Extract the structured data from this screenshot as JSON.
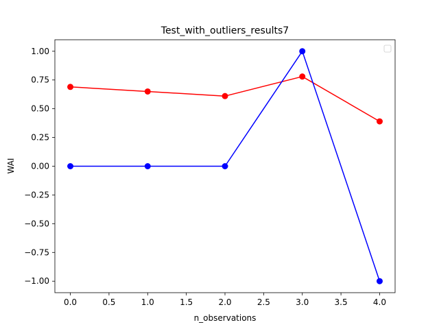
{
  "chart_data": {
    "type": "line",
    "title": "Test_with_outliers_results7",
    "xlabel": "n_observations",
    "ylabel": "WAI",
    "xlim": [
      -0.2,
      4.2
    ],
    "ylim": [
      -1.1,
      1.1
    ],
    "xticks": [
      0.0,
      0.5,
      1.0,
      1.5,
      2.0,
      2.5,
      3.0,
      3.5,
      4.0
    ],
    "xtick_labels": [
      "0.0",
      "0.5",
      "1.0",
      "1.5",
      "2.0",
      "2.5",
      "3.0",
      "3.5",
      "4.0"
    ],
    "yticks": [
      1.0,
      0.75,
      0.5,
      0.25,
      0.0,
      -0.25,
      -0.5,
      -0.75,
      -1.0
    ],
    "ytick_labels": [
      "1.00",
      "0.75",
      "0.50",
      "0.25",
      "0.00",
      "−0.25",
      "−0.50",
      "−0.75",
      "−1.00"
    ],
    "grid": false,
    "legend": {
      "placement": "top-right",
      "entries": []
    },
    "x": [
      0,
      1,
      2,
      3,
      4
    ],
    "series": [
      {
        "color": "#ff0000",
        "marker": "circle",
        "values": [
          0.69,
          0.65,
          0.61,
          0.78,
          0.39
        ]
      },
      {
        "color": "#0000ff",
        "marker": "circle",
        "values": [
          0.0,
          0.0,
          0.0,
          1.0,
          -1.0
        ]
      }
    ]
  }
}
